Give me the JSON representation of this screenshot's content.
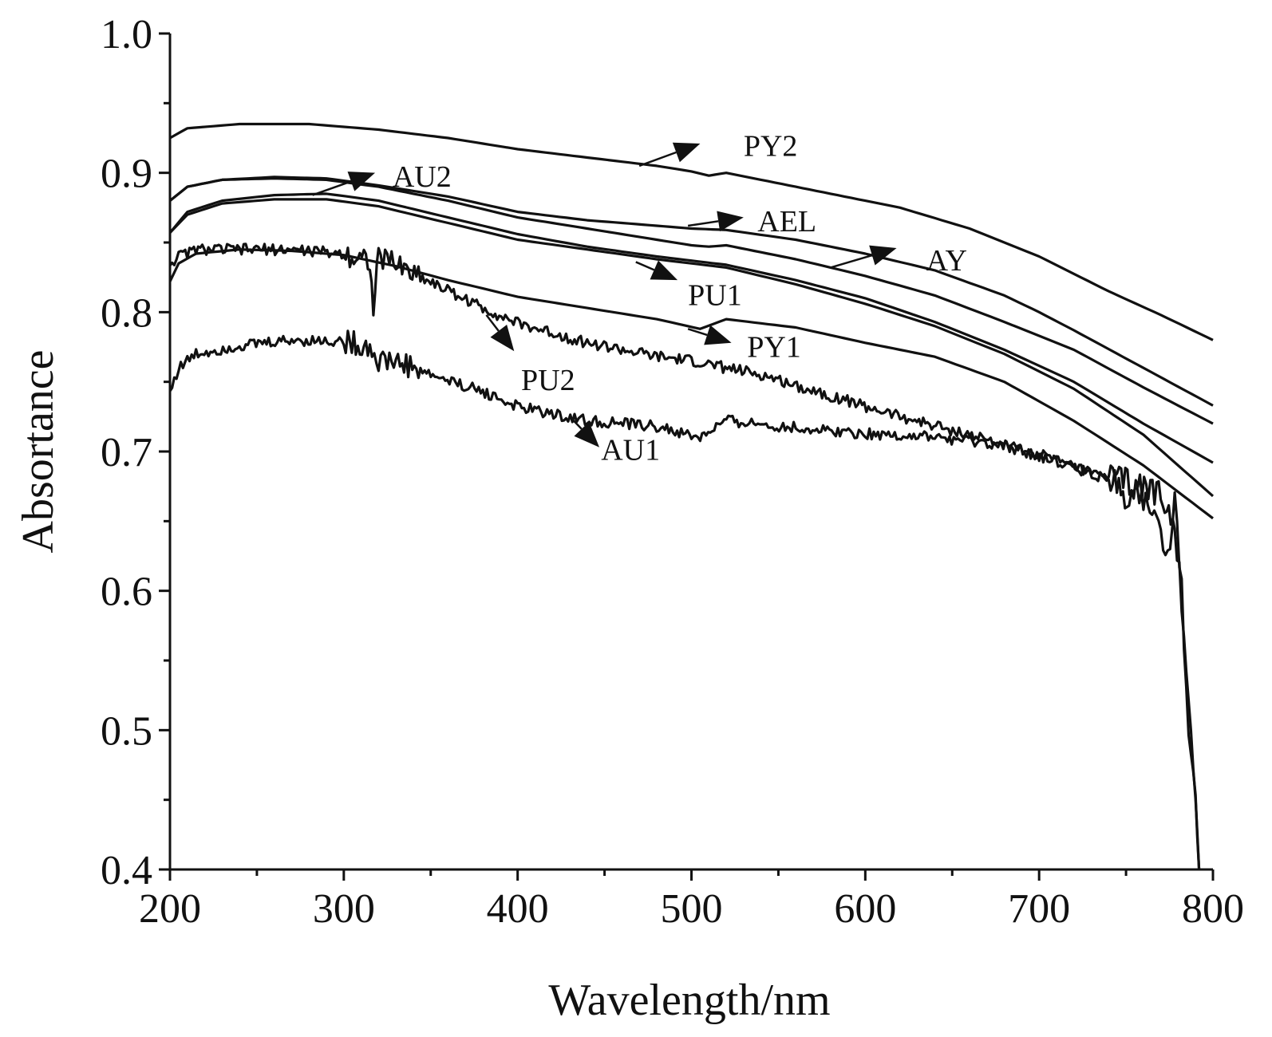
{
  "chart_data": {
    "type": "line",
    "xlabel": "Wavelength/nm",
    "ylabel": "Absortance",
    "xlim": [
      200,
      800
    ],
    "ylim": [
      0.4,
      1.0
    ],
    "xticks": [
      "200",
      "300",
      "400",
      "500",
      "600",
      "700",
      "800"
    ],
    "yticks": [
      "0.4",
      "0.5",
      "0.6",
      "0.7",
      "0.8",
      "0.9",
      "1.0"
    ],
    "grid": false,
    "legend": "none",
    "line_color": "#111111",
    "series": [
      {
        "name": "PY2",
        "noise": 0,
        "x": [
          200,
          210,
          240,
          280,
          320,
          360,
          400,
          440,
          480,
          500,
          510,
          520,
          540,
          580,
          620,
          660,
          700,
          740,
          770,
          800
        ],
        "y": [
          0.925,
          0.932,
          0.935,
          0.935,
          0.931,
          0.925,
          0.917,
          0.911,
          0.905,
          0.901,
          0.898,
          0.9,
          0.895,
          0.885,
          0.875,
          0.86,
          0.84,
          0.815,
          0.798,
          0.78
        ]
      },
      {
        "name": "AU2",
        "noise": 0,
        "x": [
          200,
          210,
          230,
          260,
          290,
          320,
          360,
          400,
          440,
          480,
          500,
          520,
          560,
          600,
          640,
          680,
          700,
          720,
          760,
          800
        ],
        "y": [
          0.88,
          0.89,
          0.895,
          0.897,
          0.896,
          0.891,
          0.883,
          0.872,
          0.866,
          0.862,
          0.86,
          0.859,
          0.852,
          0.842,
          0.83,
          0.812,
          0.8,
          0.787,
          0.76,
          0.733
        ]
      },
      {
        "name": "AEL",
        "noise": 0,
        "x": [
          200,
          210,
          230,
          260,
          290,
          320,
          360,
          400,
          440,
          480,
          500,
          510,
          520,
          560,
          600,
          640,
          680,
          720,
          760,
          800
        ],
        "y": [
          0.88,
          0.89,
          0.895,
          0.896,
          0.895,
          0.89,
          0.88,
          0.868,
          0.86,
          0.852,
          0.848,
          0.847,
          0.848,
          0.838,
          0.826,
          0.812,
          0.793,
          0.773,
          0.746,
          0.72
        ]
      },
      {
        "name": "AY",
        "noise": 0,
        "x": [
          200,
          210,
          230,
          260,
          290,
          320,
          360,
          400,
          440,
          480,
          520,
          560,
          600,
          640,
          680,
          720,
          760,
          800
        ],
        "y": [
          0.857,
          0.872,
          0.88,
          0.884,
          0.885,
          0.88,
          0.868,
          0.856,
          0.847,
          0.84,
          0.834,
          0.823,
          0.81,
          0.793,
          0.773,
          0.75,
          0.72,
          0.692
        ]
      },
      {
        "name": "PU1",
        "noise": 0,
        "x": [
          200,
          210,
          230,
          260,
          290,
          320,
          360,
          400,
          440,
          480,
          520,
          560,
          600,
          640,
          680,
          720,
          760,
          800
        ],
        "y": [
          0.857,
          0.87,
          0.878,
          0.881,
          0.881,
          0.876,
          0.864,
          0.852,
          0.845,
          0.838,
          0.832,
          0.82,
          0.806,
          0.79,
          0.77,
          0.745,
          0.712,
          0.668
        ]
      },
      {
        "name": "PY1",
        "noise": 0,
        "x": [
          200,
          205,
          215,
          240,
          270,
          300,
          330,
          360,
          400,
          440,
          480,
          505,
          520,
          560,
          600,
          640,
          680,
          720,
          760,
          800
        ],
        "y": [
          0.822,
          0.835,
          0.842,
          0.845,
          0.844,
          0.841,
          0.833,
          0.823,
          0.811,
          0.803,
          0.795,
          0.788,
          0.795,
          0.789,
          0.778,
          0.768,
          0.75,
          0.722,
          0.69,
          0.652
        ]
      },
      {
        "name": "PU2",
        "noise": 0.004,
        "x": [
          200,
          205,
          215,
          240,
          270,
          300,
          315,
          317,
          320,
          330,
          350,
          380,
          400,
          440,
          480,
          500,
          540,
          580,
          620,
          660,
          700,
          740,
          770,
          778,
          782,
          786,
          790,
          792
        ],
        "y": [
          0.835,
          0.84,
          0.845,
          0.845,
          0.845,
          0.842,
          0.838,
          0.8,
          0.84,
          0.835,
          0.822,
          0.803,
          0.792,
          0.778,
          0.768,
          0.765,
          0.755,
          0.74,
          0.725,
          0.712,
          0.697,
          0.68,
          0.67,
          0.655,
          0.59,
          0.52,
          0.45,
          0.4
        ]
      },
      {
        "name": "AU1",
        "noise": 0.004,
        "x": [
          200,
          205,
          215,
          240,
          270,
          300,
          315,
          320,
          330,
          350,
          380,
          400,
          440,
          480,
          500,
          505,
          520,
          560,
          600,
          640,
          680,
          700,
          740,
          760,
          770,
          774,
          778,
          782,
          786,
          790,
          792
        ],
        "y": [
          0.743,
          0.76,
          0.77,
          0.776,
          0.78,
          0.779,
          0.775,
          0.765,
          0.765,
          0.755,
          0.743,
          0.732,
          0.722,
          0.718,
          0.711,
          0.71,
          0.722,
          0.717,
          0.713,
          0.71,
          0.704,
          0.698,
          0.68,
          0.66,
          0.65,
          0.62,
          0.66,
          0.6,
          0.5,
          0.45,
          0.4
        ]
      }
    ],
    "annotations": [
      {
        "text": "PY2",
        "label_at": [
          530,
          0.92
        ],
        "arrow_from": [
          470,
          0.905
        ],
        "arrow_to": [
          505,
          0.921
        ]
      },
      {
        "text": "AU2",
        "label_at": [
          328,
          0.898
        ],
        "arrow_from": [
          282,
          0.884
        ],
        "arrow_to": [
          318,
          0.9
        ]
      },
      {
        "text": "AEL",
        "label_at": [
          538,
          0.866
        ],
        "arrow_from": [
          498,
          0.862
        ],
        "arrow_to": [
          530,
          0.868
        ]
      },
      {
        "text": "AY",
        "label_at": [
          635,
          0.838
        ],
        "arrow_from": [
          580,
          0.832
        ],
        "arrow_to": [
          618,
          0.846
        ]
      },
      {
        "text": "PU1",
        "label_at": [
          498,
          0.813
        ],
        "arrow_from": [
          468,
          0.836
        ],
        "arrow_to": [
          492,
          0.823
        ]
      },
      {
        "text": "PY1",
        "label_at": [
          532,
          0.776
        ],
        "arrow_from": [
          498,
          0.788
        ],
        "arrow_to": [
          523,
          0.778
        ]
      },
      {
        "text": "PU2",
        "label_at": [
          402,
          0.752
        ],
        "arrow_from": [
          382,
          0.798
        ],
        "arrow_to": [
          398,
          0.772
        ]
      },
      {
        "text": "AU1",
        "label_at": [
          448,
          0.702
        ],
        "arrow_from": [
          430,
          0.725
        ],
        "arrow_to": [
          447,
          0.703
        ]
      }
    ]
  }
}
